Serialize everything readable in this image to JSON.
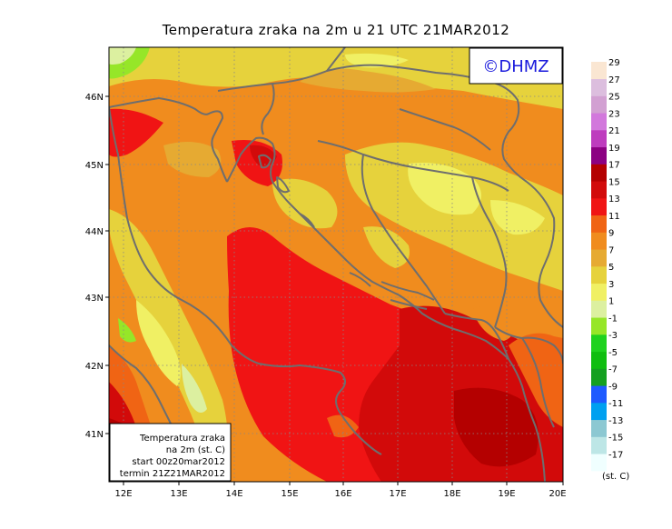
{
  "title": "Temperatura zraka na 2m u 21 UTC 21MAR2012",
  "logo_text": "©DHMZ",
  "info_box": {
    "line1": "Temperatura zraka",
    "line2": "na 2m (st. C)",
    "line3": "start 00z20mar2012",
    "line4": "termin 21Z21MAR2012"
  },
  "lat_labels": [
    "46N",
    "45N",
    "44N",
    "43N",
    "42N",
    "41N"
  ],
  "lon_labels": [
    "12E",
    "13E",
    "14E",
    "15E",
    "16E",
    "17E",
    "18E",
    "19E",
    "20E"
  ],
  "legend": {
    "unit": "(st. C)",
    "colors": [
      "#f0ffff",
      "#bde6e6",
      "#8cc8d2",
      "#00a0f0",
      "#1e5aff",
      "#14a020",
      "#0fbe0f",
      "#1ed21e",
      "#96e628",
      "#dcf0a0",
      "#f0f064",
      "#e6d23c",
      "#e6aa32",
      "#f08c1e",
      "#f06414",
      "#f01414",
      "#d20a0a",
      "#b40000",
      "#8c0082",
      "#be3cbe",
      "#d278dc",
      "#d2a0d2",
      "#dcbede",
      "#fae6d2"
    ],
    "labels": [
      "-17",
      "-15",
      "-13",
      "-11",
      "-9",
      "-7",
      "-5",
      "-3",
      "-1",
      "1",
      "3",
      "5",
      "7",
      "9",
      "11",
      "13",
      "15",
      "17",
      "19",
      "21",
      "23",
      "25",
      "27",
      "29"
    ]
  }
}
